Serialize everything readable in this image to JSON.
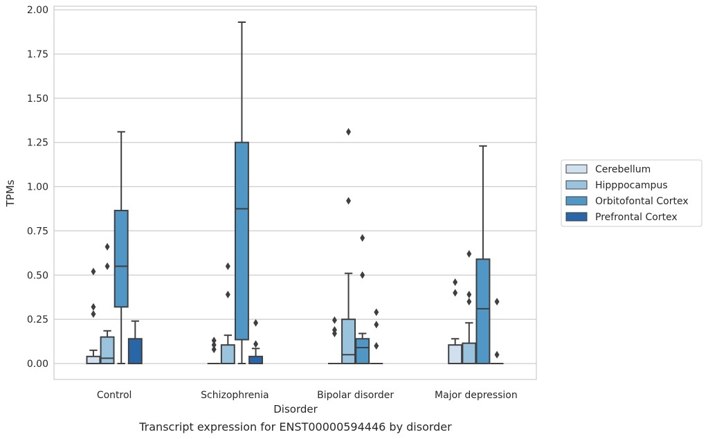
{
  "caption": "Transcript expression for ENST00000594446 by disorder",
  "chart_data": {
    "type": "box",
    "xlabel": "Disorder",
    "ylabel": "TPMs",
    "ylim": [
      -0.09,
      2.02
    ],
    "yticks": [
      "0.00",
      "0.25",
      "0.50",
      "0.75",
      "1.00",
      "1.25",
      "1.50",
      "1.75",
      "2.00"
    ],
    "categories": [
      "Control",
      "Schizophrenia",
      "Bipolar disorder",
      "Major depression"
    ],
    "grid": true,
    "legend_position": "outside-right",
    "series": [
      {
        "name": "Cerebellum",
        "color": "#d0e0ef",
        "boxes": [
          {
            "q1": 0.0,
            "median": 0.0,
            "q3": 0.04,
            "whislo": 0.0,
            "whishi": 0.075,
            "fliers": [
              0.28,
              0.32,
              0.52
            ]
          },
          {
            "q1": 0.0,
            "median": 0.0,
            "q3": 0.0,
            "whislo": 0.0,
            "whishi": 0.0,
            "fliers": [
              0.08,
              0.105,
              0.13
            ]
          },
          {
            "q1": 0.0,
            "median": 0.0,
            "q3": 0.0,
            "whislo": 0.0,
            "whishi": 0.0,
            "fliers": [
              0.17,
              0.19,
              0.245
            ]
          },
          {
            "q1": 0.0,
            "median": 0.0,
            "q3": 0.105,
            "whislo": 0.0,
            "whishi": 0.14,
            "fliers": [
              0.4,
              0.46
            ]
          }
        ]
      },
      {
        "name": "Hipppocampus",
        "color": "#9ac3de",
        "boxes": [
          {
            "q1": 0.0,
            "median": 0.03,
            "q3": 0.15,
            "whislo": 0.0,
            "whishi": 0.185,
            "fliers": [
              0.55,
              0.66
            ]
          },
          {
            "q1": 0.0,
            "median": 0.0,
            "q3": 0.105,
            "whislo": 0.0,
            "whishi": 0.16,
            "fliers": [
              0.39,
              0.55
            ]
          },
          {
            "q1": 0.0,
            "median": 0.05,
            "q3": 0.25,
            "whislo": 0.0,
            "whishi": 0.51,
            "fliers": [
              0.92,
              1.31
            ]
          },
          {
            "q1": 0.0,
            "median": 0.0,
            "q3": 0.115,
            "whislo": 0.0,
            "whishi": 0.23,
            "fliers": [
              0.35,
              0.39,
              0.62
            ]
          }
        ]
      },
      {
        "name": "Orbitofontal Cortex",
        "color": "#5097c6",
        "boxes": [
          {
            "q1": 0.32,
            "median": 0.55,
            "q3": 0.865,
            "whislo": 0.0,
            "whishi": 1.31,
            "fliers": []
          },
          {
            "q1": 0.135,
            "median": 0.875,
            "q3": 1.25,
            "whislo": 0.0,
            "whishi": 1.93,
            "fliers": []
          },
          {
            "q1": 0.0,
            "median": 0.09,
            "q3": 0.14,
            "whislo": 0.0,
            "whishi": 0.17,
            "fliers": [
              0.5,
              0.71
            ]
          },
          {
            "q1": 0.0,
            "median": 0.31,
            "q3": 0.59,
            "whislo": 0.0,
            "whishi": 1.23,
            "fliers": []
          }
        ]
      },
      {
        "name": "Prefrontal Cortex",
        "color": "#2966a7",
        "boxes": [
          {
            "q1": 0.0,
            "median": 0.0,
            "q3": 0.14,
            "whislo": 0.0,
            "whishi": 0.24,
            "fliers": []
          },
          {
            "q1": 0.0,
            "median": 0.0,
            "q3": 0.04,
            "whislo": 0.0,
            "whishi": 0.085,
            "fliers": [
              0.11,
              0.23
            ]
          },
          {
            "q1": 0.0,
            "median": 0.0,
            "q3": 0.0,
            "whislo": 0.0,
            "whishi": 0.0,
            "fliers": [
              0.1,
              0.22,
              0.29
            ]
          },
          {
            "q1": 0.0,
            "median": 0.0,
            "q3": 0.0,
            "whislo": 0.0,
            "whishi": 0.0,
            "fliers": [
              0.05,
              0.35
            ]
          }
        ]
      }
    ]
  }
}
